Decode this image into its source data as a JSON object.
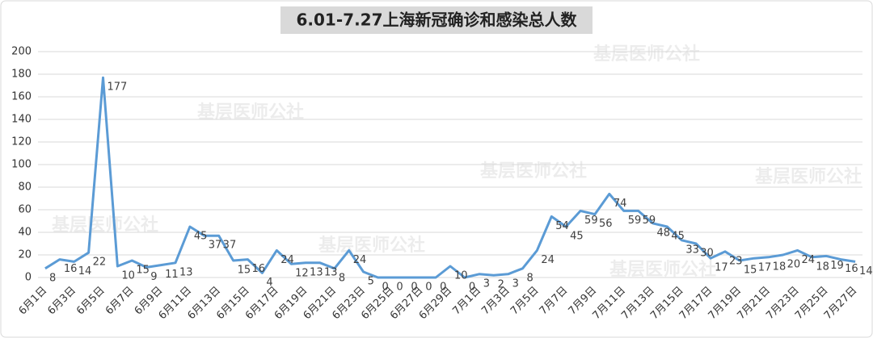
{
  "chart_data": {
    "type": "line",
    "title": "6.01-7.27上海新冠确诊和感染总人数",
    "watermark": "基层医师公社",
    "categories": [
      "6月1日",
      null,
      "6月3日",
      null,
      "6月5日",
      null,
      "6月7日",
      null,
      "6月9日",
      null,
      "6月11日",
      null,
      "6月13日",
      null,
      "6月15日",
      null,
      "6月17日",
      null,
      "6月19日",
      null,
      "6月21日",
      null,
      "6月23日",
      null,
      "6月25日",
      null,
      "6月27日",
      null,
      "6月29日",
      null,
      "7月1日",
      null,
      "7月3日",
      null,
      "7月5日",
      null,
      "7月7日",
      null,
      "7月9日",
      null,
      "7月11日",
      null,
      "7月13日",
      null,
      "7月15日",
      null,
      "7月17日",
      null,
      "7月19日",
      null,
      "7月21日",
      null,
      "7月23日",
      null,
      "7月25日",
      null,
      "7月27日"
    ],
    "series": [
      {
        "name": "总人数",
        "color": "#5b9bd5",
        "values": [
          8,
          16,
          14,
          22,
          177,
          10,
          15,
          9,
          11,
          13,
          45,
          37,
          37,
          15,
          16,
          4,
          24,
          12,
          13,
          13,
          8,
          24,
          5,
          0,
          0,
          0,
          0,
          0,
          10,
          0,
          3,
          2,
          3,
          8,
          24,
          54,
          45,
          59,
          56,
          74,
          59,
          59,
          48,
          45,
          33,
          30,
          17,
          23,
          15,
          17,
          18,
          20,
          24,
          18,
          19,
          16,
          14
        ]
      }
    ],
    "ylim": [
      0,
      200
    ],
    "yticks": [
      0,
      20,
      40,
      60,
      80,
      100,
      120,
      140,
      160,
      180,
      200
    ],
    "grid": true
  }
}
